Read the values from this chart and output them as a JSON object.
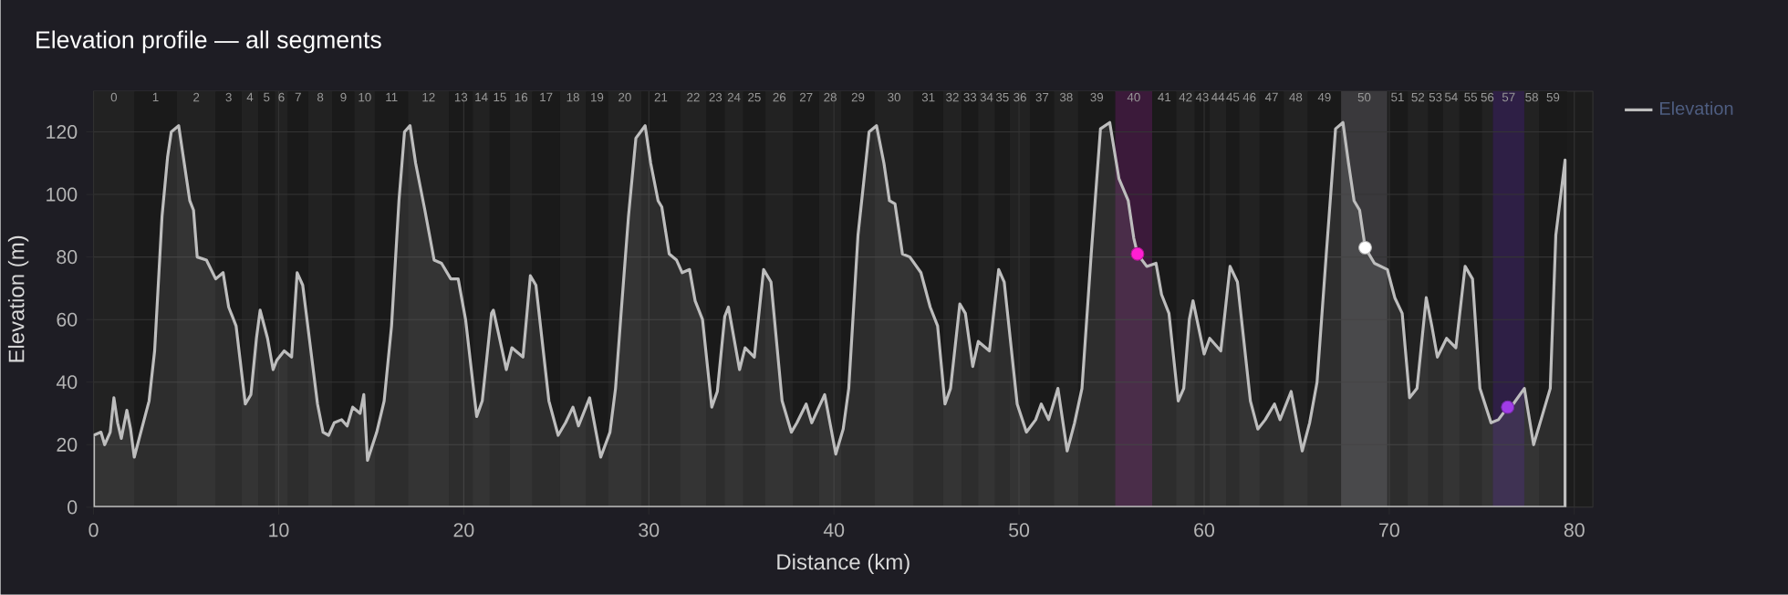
{
  "chart_data": {
    "type": "area",
    "title": "Elevation profile — all segments",
    "xlabel": "Distance (km)",
    "ylabel": "Elevation (m)",
    "xlim": [
      0,
      81
    ],
    "xticks": [
      0,
      10,
      20,
      30,
      40,
      50,
      60,
      70,
      80
    ],
    "ylim": [
      0,
      133
    ],
    "yticks": [
      0,
      20,
      40,
      60,
      80,
      100,
      120
    ],
    "grid": true,
    "legend": "right",
    "series": [
      {
        "name": "Elevation",
        "color": "#bdbdbd",
        "marker": "none",
        "x": [
          0,
          0.4,
          0.6,
          0.9,
          1.1,
          1.3,
          1.5,
          1.8,
          2.0,
          2.2,
          2.6,
          3.0,
          3.3,
          3.7,
          4.0,
          4.2,
          4.6,
          4.9,
          5.2,
          5.4,
          5.6,
          6.1,
          6.6,
          7.0,
          7.3,
          7.7,
          8.2,
          8.5,
          8.8,
          9.0,
          9.4,
          9.7,
          9.9,
          10.3,
          10.7,
          11.0,
          11.3,
          11.7,
          12.1,
          12.4,
          12.7,
          13.0,
          13.4,
          13.7,
          14.0,
          14.4,
          14.6,
          14.8,
          15.3,
          15.7,
          16.1,
          16.5,
          16.8,
          17.1,
          17.4,
          17.9,
          18.4,
          18.8,
          19.3,
          19.7,
          20.1,
          20.7,
          21.0,
          21.5,
          21.6,
          21.9,
          22.3,
          22.6,
          23.2,
          23.6,
          23.9,
          24.6,
          25.1,
          25.5,
          25.9,
          26.2,
          26.8,
          27.4,
          27.9,
          28.2,
          28.5,
          28.9,
          29.3,
          29.8,
          30.1,
          30.5,
          30.7,
          31.1,
          31.5,
          31.8,
          32.2,
          32.5,
          32.9,
          33.4,
          33.7,
          34.1,
          34.3,
          34.6,
          34.9,
          35.2,
          35.7,
          36.2,
          36.6,
          37.2,
          37.7,
          38.0,
          38.5,
          38.8,
          39.5,
          40.1,
          40.5,
          40.8,
          41.3,
          41.9,
          42.3,
          42.7,
          43.0,
          43.3,
          43.7,
          44.1,
          44.7,
          45.2,
          45.6,
          46.0,
          46.3,
          46.8,
          47.1,
          47.5,
          47.8,
          48.4,
          48.9,
          49.2,
          49.9,
          50.4,
          50.9,
          51.2,
          51.6,
          52.1,
          52.6,
          53.0,
          53.4,
          53.9,
          54.4,
          54.9,
          55.4,
          55.9,
          56.2,
          56.4,
          56.9,
          57.4,
          57.7,
          58.1,
          58.6,
          58.9,
          59.2,
          59.4,
          60.0,
          60.3,
          60.9,
          61.4,
          61.8,
          62.5,
          62.9,
          63.3,
          63.8,
          64.1,
          64.7,
          65.3,
          65.7,
          66.1,
          66.6,
          67.1,
          67.5,
          67.8,
          68.1,
          68.4,
          68.7,
          69.2,
          69.9,
          70.3,
          70.7,
          71.1,
          71.5,
          72.0,
          72.3,
          72.6,
          73.1,
          73.6,
          74.1,
          74.5,
          74.9,
          75.5,
          75.9,
          76.4,
          76.7,
          77.3,
          77.8,
          78.2,
          78.7,
          79.0,
          79.5
        ],
        "values": [
          23,
          24,
          20,
          24,
          35,
          27,
          22,
          31,
          25,
          16,
          25,
          34,
          50,
          93,
          112,
          120,
          122,
          110,
          98,
          95,
          80,
          79,
          73,
          75,
          64,
          58,
          33,
          36,
          54,
          63,
          54,
          44,
          47,
          50,
          48,
          75,
          71,
          52,
          33,
          24,
          23,
          27,
          28,
          26,
          32,
          30,
          36,
          15,
          24,
          34,
          58,
          98,
          120,
          122,
          110,
          95,
          79,
          78,
          73,
          73,
          60,
          29,
          34,
          62,
          63,
          55,
          44,
          51,
          48,
          74,
          71,
          34,
          23,
          27,
          32,
          26,
          35,
          16,
          24,
          38,
          62,
          93,
          118,
          122,
          110,
          98,
          96,
          81,
          79,
          75,
          76,
          66,
          60,
          32,
          37,
          61,
          64,
          54,
          44,
          51,
          48,
          76,
          72,
          34,
          24,
          27,
          33,
          27,
          36,
          17,
          25,
          38,
          87,
          120,
          122,
          110,
          98,
          97,
          81,
          80,
          75,
          64,
          58,
          33,
          38,
          65,
          62,
          45,
          53,
          50,
          76,
          72,
          33,
          24,
          28,
          33,
          28,
          38,
          18,
          27,
          38,
          81,
          121,
          123,
          105,
          98,
          86,
          81,
          77,
          78,
          68,
          62,
          34,
          38,
          60,
          66,
          49,
          54,
          50,
          77,
          72,
          34,
          25,
          28,
          33,
          28,
          37,
          18,
          27,
          40,
          81,
          121,
          123,
          110,
          98,
          95,
          83,
          78,
          76,
          67,
          62,
          35,
          38,
          67,
          58,
          48,
          54,
          51,
          77,
          73,
          38,
          27,
          28,
          32,
          33,
          38,
          20,
          28,
          38,
          87,
          111
        ]
      },
      {
        "type": "scatter",
        "marker": "circle",
        "x": [
          56.4,
          68.7,
          76.4
        ],
        "values": [
          81,
          83,
          32
        ],
        "colors": [
          "#ff1fd2",
          "#ffffff",
          "#a03ce6"
        ]
      }
    ],
    "bands": [
      {
        "axis": "x",
        "from": 0,
        "to": 2.2,
        "label": "0",
        "color": "#222222"
      },
      {
        "axis": "x",
        "from": 2.2,
        "to": 4.5,
        "label": "1",
        "color": "#1a1a1a"
      },
      {
        "axis": "x",
        "from": 4.5,
        "to": 6.6,
        "label": "2",
        "color": "#222222"
      },
      {
        "axis": "x",
        "from": 6.6,
        "to": 8.0,
        "label": "3",
        "color": "#1a1a1a"
      },
      {
        "axis": "x",
        "from": 8.0,
        "to": 8.9,
        "label": "4",
        "color": "#222222"
      },
      {
        "axis": "x",
        "from": 8.9,
        "to": 9.8,
        "label": "5",
        "color": "#1a1a1a"
      },
      {
        "axis": "x",
        "from": 9.8,
        "to": 10.5,
        "label": "6",
        "color": "#222222"
      },
      {
        "axis": "x",
        "from": 10.5,
        "to": 11.6,
        "label": "7",
        "color": "#1a1a1a"
      },
      {
        "axis": "x",
        "from": 11.6,
        "to": 12.9,
        "label": "8",
        "color": "#222222"
      },
      {
        "axis": "x",
        "from": 12.9,
        "to": 14.1,
        "label": "9",
        "color": "#1a1a1a"
      },
      {
        "axis": "x",
        "from": 14.1,
        "to": 15.2,
        "label": "10",
        "color": "#222222"
      },
      {
        "axis": "x",
        "from": 15.2,
        "to": 17.0,
        "label": "11",
        "color": "#1a1a1a"
      },
      {
        "axis": "x",
        "from": 17.0,
        "to": 19.2,
        "label": "12",
        "color": "#222222"
      },
      {
        "axis": "x",
        "from": 19.2,
        "to": 20.5,
        "label": "13",
        "color": "#1a1a1a"
      },
      {
        "axis": "x",
        "from": 20.5,
        "to": 21.4,
        "label": "14",
        "color": "#222222"
      },
      {
        "axis": "x",
        "from": 21.4,
        "to": 22.5,
        "label": "15",
        "color": "#1a1a1a"
      },
      {
        "axis": "x",
        "from": 22.5,
        "to": 23.7,
        "label": "16",
        "color": "#222222"
      },
      {
        "axis": "x",
        "from": 23.7,
        "to": 25.2,
        "label": "17",
        "color": "#1a1a1a"
      },
      {
        "axis": "x",
        "from": 25.2,
        "to": 26.6,
        "label": "18",
        "color": "#222222"
      },
      {
        "axis": "x",
        "from": 26.6,
        "to": 27.8,
        "label": "19",
        "color": "#1a1a1a"
      },
      {
        "axis": "x",
        "from": 27.8,
        "to": 29.6,
        "label": "20",
        "color": "#222222"
      },
      {
        "axis": "x",
        "from": 29.6,
        "to": 31.7,
        "label": "21",
        "color": "#1a1a1a"
      },
      {
        "axis": "x",
        "from": 31.7,
        "to": 33.1,
        "label": "22",
        "color": "#222222"
      },
      {
        "axis": "x",
        "from": 33.1,
        "to": 34.1,
        "label": "23",
        "color": "#1a1a1a"
      },
      {
        "axis": "x",
        "from": 34.1,
        "to": 35.1,
        "label": "24",
        "color": "#222222"
      },
      {
        "axis": "x",
        "from": 35.1,
        "to": 36.3,
        "label": "25",
        "color": "#1a1a1a"
      },
      {
        "axis": "x",
        "from": 36.3,
        "to": 37.8,
        "label": "26",
        "color": "#222222"
      },
      {
        "axis": "x",
        "from": 37.8,
        "to": 39.2,
        "label": "27",
        "color": "#1a1a1a"
      },
      {
        "axis": "x",
        "from": 39.2,
        "to": 40.4,
        "label": "28",
        "color": "#222222"
      },
      {
        "axis": "x",
        "from": 40.4,
        "to": 42.2,
        "label": "29",
        "color": "#1a1a1a"
      },
      {
        "axis": "x",
        "from": 42.2,
        "to": 44.3,
        "label": "30",
        "color": "#222222"
      },
      {
        "axis": "x",
        "from": 44.3,
        "to": 45.9,
        "label": "31",
        "color": "#1a1a1a"
      },
      {
        "axis": "x",
        "from": 45.9,
        "to": 46.9,
        "label": "32",
        "color": "#222222"
      },
      {
        "axis": "x",
        "from": 46.9,
        "to": 47.8,
        "label": "33",
        "color": "#1a1a1a"
      },
      {
        "axis": "x",
        "from": 47.8,
        "to": 48.7,
        "label": "34",
        "color": "#222222"
      },
      {
        "axis": "x",
        "from": 48.7,
        "to": 49.5,
        "label": "35",
        "color": "#1a1a1a"
      },
      {
        "axis": "x",
        "from": 49.5,
        "to": 50.6,
        "label": "36",
        "color": "#222222"
      },
      {
        "axis": "x",
        "from": 50.6,
        "to": 51.9,
        "label": "37",
        "color": "#1a1a1a"
      },
      {
        "axis": "x",
        "from": 51.9,
        "to": 53.2,
        "label": "38",
        "color": "#222222"
      },
      {
        "axis": "x",
        "from": 53.2,
        "to": 55.2,
        "label": "39",
        "color": "#1a1a1a"
      },
      {
        "axis": "x",
        "from": 55.2,
        "to": 57.2,
        "label": "40",
        "color": "#3b1a3a"
      },
      {
        "axis": "x",
        "from": 57.2,
        "to": 58.5,
        "label": "41",
        "color": "#1a1a1a"
      },
      {
        "axis": "x",
        "from": 58.5,
        "to": 59.5,
        "label": "42",
        "color": "#222222"
      },
      {
        "axis": "x",
        "from": 59.5,
        "to": 60.3,
        "label": "43",
        "color": "#1a1a1a"
      },
      {
        "axis": "x",
        "from": 60.3,
        "to": 61.2,
        "label": "44",
        "color": "#222222"
      },
      {
        "axis": "x",
        "from": 61.2,
        "to": 61.9,
        "label": "45",
        "color": "#1a1a1a"
      },
      {
        "axis": "x",
        "from": 61.9,
        "to": 63.0,
        "label": "46",
        "color": "#222222"
      },
      {
        "axis": "x",
        "from": 63.0,
        "to": 64.3,
        "label": "47",
        "color": "#1a1a1a"
      },
      {
        "axis": "x",
        "from": 64.3,
        "to": 65.6,
        "label": "48",
        "color": "#222222"
      },
      {
        "axis": "x",
        "from": 65.6,
        "to": 67.4,
        "label": "49",
        "color": "#1a1a1a"
      },
      {
        "axis": "x",
        "from": 67.4,
        "to": 69.9,
        "label": "50",
        "color": "#3a393c"
      },
      {
        "axis": "x",
        "from": 69.9,
        "to": 71.0,
        "label": "51",
        "color": "#1a1a1a"
      },
      {
        "axis": "x",
        "from": 71.0,
        "to": 72.1,
        "label": "52",
        "color": "#222222"
      },
      {
        "axis": "x",
        "from": 72.1,
        "to": 72.9,
        "label": "53",
        "color": "#1a1a1a"
      },
      {
        "axis": "x",
        "from": 72.9,
        "to": 73.8,
        "label": "54",
        "color": "#222222"
      },
      {
        "axis": "x",
        "from": 73.8,
        "to": 75.0,
        "label": "55",
        "color": "#1a1a1a"
      },
      {
        "axis": "x",
        "from": 75.0,
        "to": 75.6,
        "label": "56",
        "color": "#222222"
      },
      {
        "axis": "x",
        "from": 75.6,
        "to": 77.3,
        "label": "57",
        "color": "#2e1f45"
      },
      {
        "axis": "x",
        "from": 77.3,
        "to": 78.1,
        "label": "58",
        "color": "#222222"
      },
      {
        "axis": "x",
        "from": 78.1,
        "to": 79.6,
        "label": "59",
        "color": "#1a1a1a"
      }
    ]
  }
}
